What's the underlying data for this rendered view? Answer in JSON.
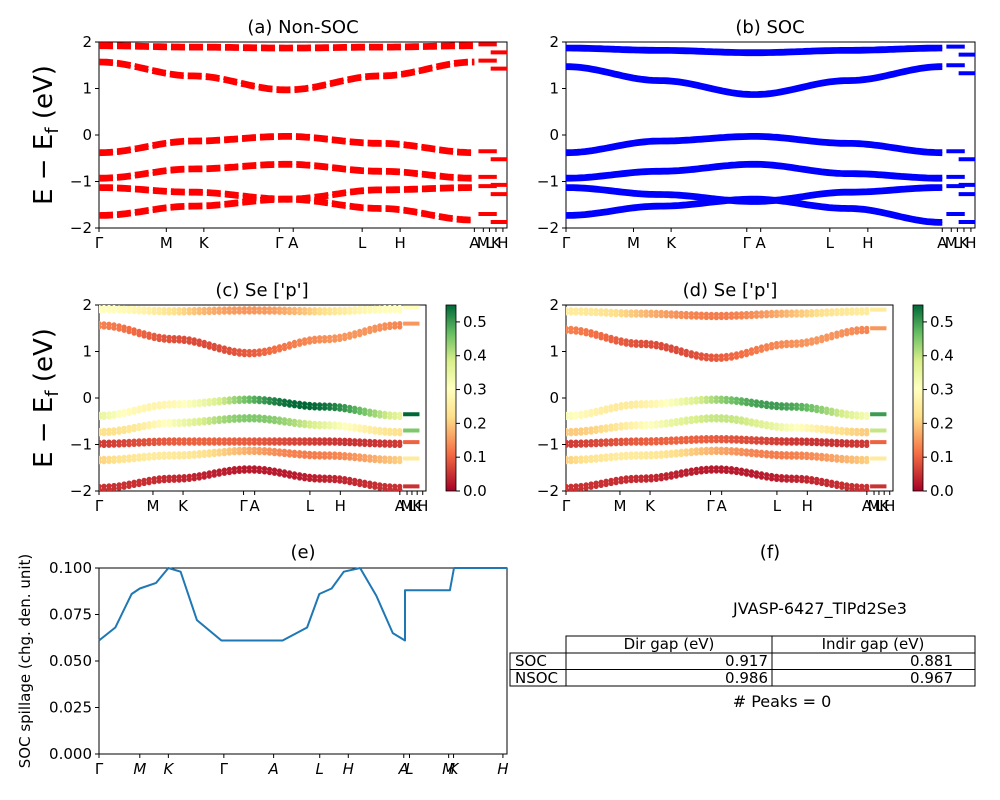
{
  "panels": {
    "a": {
      "title": "(a) Non-SOC",
      "yticks": [
        "2",
        "1",
        "0",
        "−1",
        "−2"
      ],
      "kpoints": [
        "Γ",
        "M",
        "K",
        "Γ",
        "A",
        "L",
        "H",
        "A",
        "M",
        "L",
        "K",
        "H"
      ]
    },
    "b": {
      "title": "(b) SOC",
      "yticks": [
        "2",
        "1",
        "0",
        "−1",
        "−2"
      ],
      "kpoints": [
        "Γ",
        "M",
        "K",
        "Γ",
        "A",
        "L",
        "H",
        "A",
        "M",
        "L",
        "K",
        "H"
      ]
    },
    "c": {
      "title": "(c)  Se ['p']",
      "yticks": [
        "2",
        "1",
        "0",
        "−1",
        "−2"
      ],
      "kpoints": [
        "Γ",
        "M",
        "K",
        "Γ",
        "A",
        "L",
        "H",
        "A",
        "M",
        "L",
        "K",
        "H"
      ],
      "colorbar_ticks": [
        "0.5",
        "0.4",
        "0.3",
        "0.2",
        "0.1",
        "0.0"
      ]
    },
    "d": {
      "title": "(d) Se ['p']",
      "yticks": [
        "2",
        "1",
        "0",
        "−1",
        "−2"
      ],
      "kpoints": [
        "Γ",
        "M",
        "K",
        "Γ",
        "A",
        "L",
        "H",
        "A",
        "M",
        "L",
        "K",
        "H"
      ],
      "colorbar_ticks": [
        "0.5",
        "0.4",
        "0.3",
        "0.2",
        "0.1",
        "0.0"
      ]
    },
    "e": {
      "title": "(e)",
      "ylabel": "SOC spillage (chg. den. unit)",
      "yticks": [
        "0.100",
        "0.075",
        "0.050",
        "0.025",
        "0.000"
      ],
      "kpoints": [
        "Γ",
        "M",
        "K",
        "Γ",
        "A",
        "L",
        "H",
        "A",
        "L",
        "M",
        "K",
        "H"
      ]
    },
    "f": {
      "title": "(f)",
      "material": "JVASP-6427_TlPd2Se3",
      "table": {
        "headers": [
          "Dir gap (eV)",
          "Indir gap (eV)"
        ],
        "rows": [
          {
            "label": "SOC",
            "dir": "0.917",
            "indir": "0.881"
          },
          {
            "label": "NSOC",
            "dir": "0.986",
            "indir": "0.967"
          }
        ]
      },
      "peaks": "# Peaks = 0"
    }
  },
  "ylabel_top": "E − E",
  "ylabel_sub": "f",
  "ylabel_unit": " (eV)",
  "colors": {
    "red": "#ff0000",
    "blue": "#0000ff",
    "spillage": "#1f77b4"
  },
  "chart_data": [
    {
      "type": "line",
      "panel": "a",
      "ylim": [
        -2,
        2
      ],
      "series": [
        {
          "values": [
            1.95,
            1.92,
            1.9,
            1.92,
            1.95
          ]
        },
        {
          "values": [
            1.6,
            1.3,
            1.0,
            1.3,
            1.6
          ]
        },
        {
          "values": [
            -0.35,
            -0.1,
            0.0,
            -0.15,
            -0.35
          ]
        },
        {
          "values": [
            -0.9,
            -0.7,
            -0.6,
            -0.75,
            -0.9
          ]
        },
        {
          "values": [
            -1.1,
            -1.2,
            -1.35,
            -1.15,
            -1.1
          ]
        },
        {
          "values": [
            -1.7,
            -1.5,
            -1.35,
            -1.55,
            -1.8
          ]
        }
      ]
    },
    {
      "type": "line",
      "panel": "b",
      "ylim": [
        -2,
        2
      ],
      "series": [
        {
          "values": [
            1.9,
            1.85,
            1.8,
            1.85,
            1.9
          ]
        },
        {
          "values": [
            1.5,
            1.2,
            0.9,
            1.2,
            1.5
          ]
        },
        {
          "values": [
            -0.35,
            -0.1,
            0.0,
            -0.15,
            -0.35
          ]
        },
        {
          "values": [
            -0.9,
            -0.75,
            -0.6,
            -0.8,
            -0.9
          ]
        },
        {
          "values": [
            -1.1,
            -1.25,
            -1.4,
            -1.2,
            -1.1
          ]
        },
        {
          "values": [
            -1.7,
            -1.5,
            -1.35,
            -1.55,
            -1.85
          ]
        }
      ]
    },
    {
      "type": "scatter",
      "panel": "c",
      "ylim": [
        -2,
        2
      ],
      "colorbar": [
        0,
        0.55
      ],
      "series": [
        {
          "values": [
            1.95,
            1.9,
            1.92,
            1.9,
            1.95
          ],
          "weight": 0.3
        },
        {
          "values": [
            1.6,
            1.3,
            1.0,
            1.3,
            1.6
          ],
          "weight": 0.15
        },
        {
          "values": [
            -0.35,
            -0.1,
            0.0,
            -0.15,
            -0.35
          ],
          "weight": 0.55
        },
        {
          "values": [
            -0.7,
            -0.5,
            -0.4,
            -0.55,
            -0.7
          ],
          "weight": 0.45
        },
        {
          "values": [
            -0.95,
            -0.9,
            -0.9,
            -0.9,
            -0.95
          ],
          "weight": 0.1
        },
        {
          "values": [
            -1.3,
            -1.2,
            -1.1,
            -1.2,
            -1.3
          ],
          "weight": 0.25
        },
        {
          "values": [
            -1.9,
            -1.7,
            -1.5,
            -1.7,
            -1.9
          ],
          "weight": 0.05
        }
      ]
    },
    {
      "type": "scatter",
      "panel": "d",
      "ylim": [
        -2,
        2
      ],
      "colorbar": [
        0,
        0.55
      ],
      "series": [
        {
          "values": [
            1.9,
            1.85,
            1.8,
            1.85,
            1.9
          ],
          "weight": 0.25
        },
        {
          "values": [
            1.5,
            1.2,
            0.9,
            1.2,
            1.5
          ],
          "weight": 0.15
        },
        {
          "values": [
            -0.35,
            -0.1,
            0.0,
            -0.15,
            -0.35
          ],
          "weight": 0.5
        },
        {
          "values": [
            -0.7,
            -0.55,
            -0.4,
            -0.6,
            -0.7
          ],
          "weight": 0.4
        },
        {
          "values": [
            -0.95,
            -0.9,
            -0.85,
            -0.9,
            -0.95
          ],
          "weight": 0.1
        },
        {
          "values": [
            -1.3,
            -1.2,
            -1.1,
            -1.2,
            -1.3
          ],
          "weight": 0.25
        },
        {
          "values": [
            -1.9,
            -1.7,
            -1.5,
            -1.7,
            -1.9
          ],
          "weight": 0.05
        }
      ]
    },
    {
      "type": "line",
      "panel": "e",
      "ylabel": "SOC spillage (chg. den. unit)",
      "ylim": [
        0,
        0.1
      ],
      "x": [
        0.0,
        0.04,
        0.08,
        0.1,
        0.14,
        0.17,
        0.2,
        0.24,
        0.3,
        0.4,
        0.45,
        0.51,
        0.54,
        0.57,
        0.6,
        0.64,
        0.68,
        0.72,
        0.75,
        0.75,
        0.86,
        0.87,
        0.9,
        1.0
      ],
      "values": [
        0.061,
        0.068,
        0.086,
        0.089,
        0.092,
        0.1,
        0.098,
        0.072,
        0.061,
        0.061,
        0.061,
        0.068,
        0.086,
        0.089,
        0.098,
        0.1,
        0.085,
        0.065,
        0.061,
        0.088,
        0.088,
        0.1,
        0.1,
        0.1
      ]
    }
  ]
}
